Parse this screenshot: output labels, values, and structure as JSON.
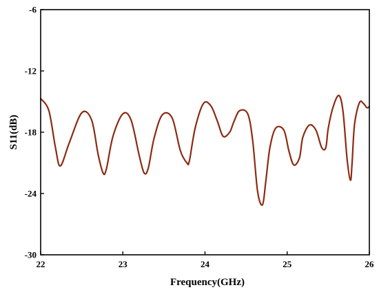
{
  "chart_data": {
    "type": "line",
    "title": "",
    "xlabel": "Frequency(GHz)",
    "ylabel": "S11(dB)",
    "xlim": [
      22,
      26
    ],
    "ylim": [
      -30,
      -6
    ],
    "xticks": [
      "22",
      "23",
      "24",
      "25",
      "26"
    ],
    "yticks": [
      "-6",
      "-12",
      "-18",
      "-24",
      "-30"
    ],
    "grid": false,
    "legend": "none",
    "line_color": "#8B2A12",
    "series": [
      {
        "x": [
          22.0,
          22.1,
          22.18,
          22.24,
          22.35,
          22.5,
          22.62,
          22.7,
          22.76,
          22.8,
          22.88,
          23.0,
          23.1,
          23.2,
          23.26,
          23.31,
          23.38,
          23.48,
          23.6,
          23.7,
          23.78,
          23.81,
          23.88,
          23.98,
          24.07,
          24.15,
          24.22,
          24.3,
          24.35,
          24.42,
          24.52,
          24.58,
          24.64,
          24.7,
          24.74,
          24.79,
          24.86,
          24.96,
          25.02,
          25.08,
          25.15,
          25.19,
          25.27,
          25.35,
          25.42,
          25.47,
          25.5,
          25.56,
          25.63,
          25.68,
          25.73,
          25.77,
          25.79,
          25.82,
          25.88,
          25.93,
          25.97,
          26.0
        ],
        "y": [
          -14.7,
          -15.9,
          -19.5,
          -21.3,
          -19.0,
          -16.1,
          -16.8,
          -20.2,
          -22.0,
          -21.6,
          -18.4,
          -16.2,
          -16.8,
          -20.3,
          -22.0,
          -21.5,
          -18.6,
          -16.3,
          -16.6,
          -19.8,
          -21.0,
          -20.8,
          -17.6,
          -15.2,
          -15.4,
          -16.9,
          -18.4,
          -18.0,
          -17.0,
          -15.9,
          -16.2,
          -18.8,
          -23.8,
          -25.1,
          -22.8,
          -19.5,
          -17.6,
          -17.8,
          -19.8,
          -21.2,
          -20.5,
          -18.5,
          -17.3,
          -17.8,
          -19.5,
          -19.5,
          -17.6,
          -15.5,
          -14.4,
          -16.0,
          -20.7,
          -22.7,
          -21.0,
          -17.2,
          -15.1,
          -15.2,
          -15.6,
          -15.5
        ]
      }
    ]
  }
}
